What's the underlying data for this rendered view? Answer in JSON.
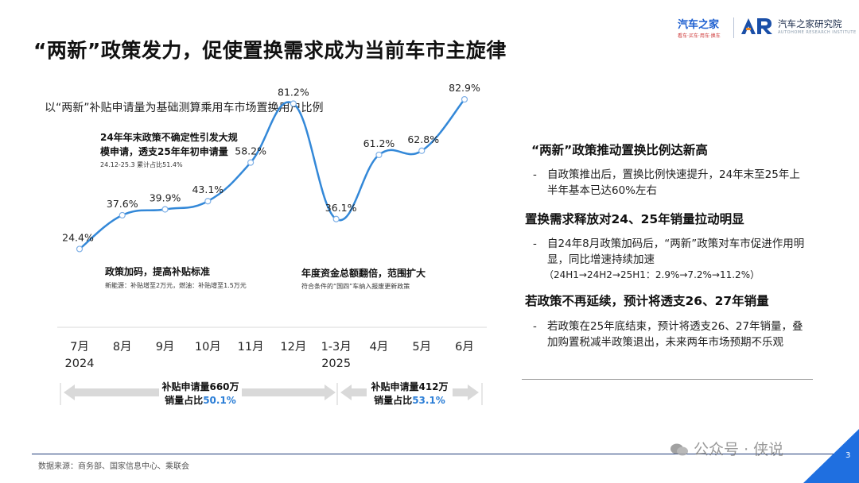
{
  "page": {
    "title": "“两新”政策发力，促使置换需求成为当前车市主旋律",
    "page_number": "3",
    "source": "数据来源：商务部、国家信息中心、乘联会",
    "watermark": "公众号 · 侠说"
  },
  "logos": {
    "autohome": "汽车之家",
    "autohome_tagline": "看车·买车·用车·换车",
    "institute_mark": "AR",
    "institute": "汽车之家研究院",
    "institute_en": "AUTOHOME RESEARCH INSTITUTE"
  },
  "chart_data": {
    "type": "line",
    "title": "以“两新”补贴申请量为基础测算乘用车市场置换用户比例",
    "categories": [
      "7月\n2024",
      "8月",
      "9月",
      "10月",
      "11月",
      "12月",
      "1-3月\n2025",
      "4月",
      "5月",
      "6月"
    ],
    "series": [
      {
        "values": [
          24.4,
          37.6,
          39.9,
          43.1,
          58.2,
          81.2,
          36.1,
          61.2,
          62.8,
          82.9
        ],
        "labels": [
          "24.4%",
          "37.6%",
          "39.9%",
          "43.1%",
          "58.2%",
          "81.2%",
          "36.1%",
          "61.2%",
          "62.8%",
          "82.9%"
        ]
      }
    ],
    "ylim": [
      0,
      100
    ],
    "grid": false,
    "colors": {
      "line": "#3388d8",
      "marker_fill": "#ffffff",
      "accent_text": "#2a7dd6",
      "bracket": "#d9d9d9"
    },
    "annotations": [
      {
        "title1": "24年年末政策不确定性引发大规",
        "title2": "模申请，透支25年年初申请量",
        "note": "24.12-25.3 累计占比51.4%"
      },
      {
        "title": "政策加码，提高补贴标准",
        "note": "新能源：补贴增至2万元，燃油：补贴增至1.5万元"
      },
      {
        "title": "年度资金总额翻倍，范围扩大",
        "note": "符合条件的“国四”车纳入报废更新政策"
      }
    ],
    "summaries": [
      {
        "line1": "补贴申请量660万",
        "line2_prefix": "销量占比",
        "line2_value": "50.1%"
      },
      {
        "line1": "补贴申请量412万",
        "line2_prefix": "销量占比",
        "line2_value": "53.1%"
      }
    ]
  },
  "right_panel": {
    "sections": [
      {
        "heading": "“两新”政策推动置换比例达新高",
        "bullet": "自政策推出后，置换比例快速提升，24年末至25年上半年基本已达60%左右"
      },
      {
        "heading": "置换需求释放对24、25年销量拉动明显",
        "bullet": "自24年8月政策加码后，“两新”政策对车市促进作用明显，同比增速持续加速",
        "note": "（24H1→24H2→25H1：2.9%→7.2%→11.2%）"
      },
      {
        "heading": "若政策不再延续，预计将透支26、27年销量",
        "bullet": "若政策在25年底结束，预计将透支26、27年销量，叠加购置税减半政策退出，未来两年市场预期不乐观"
      }
    ]
  }
}
